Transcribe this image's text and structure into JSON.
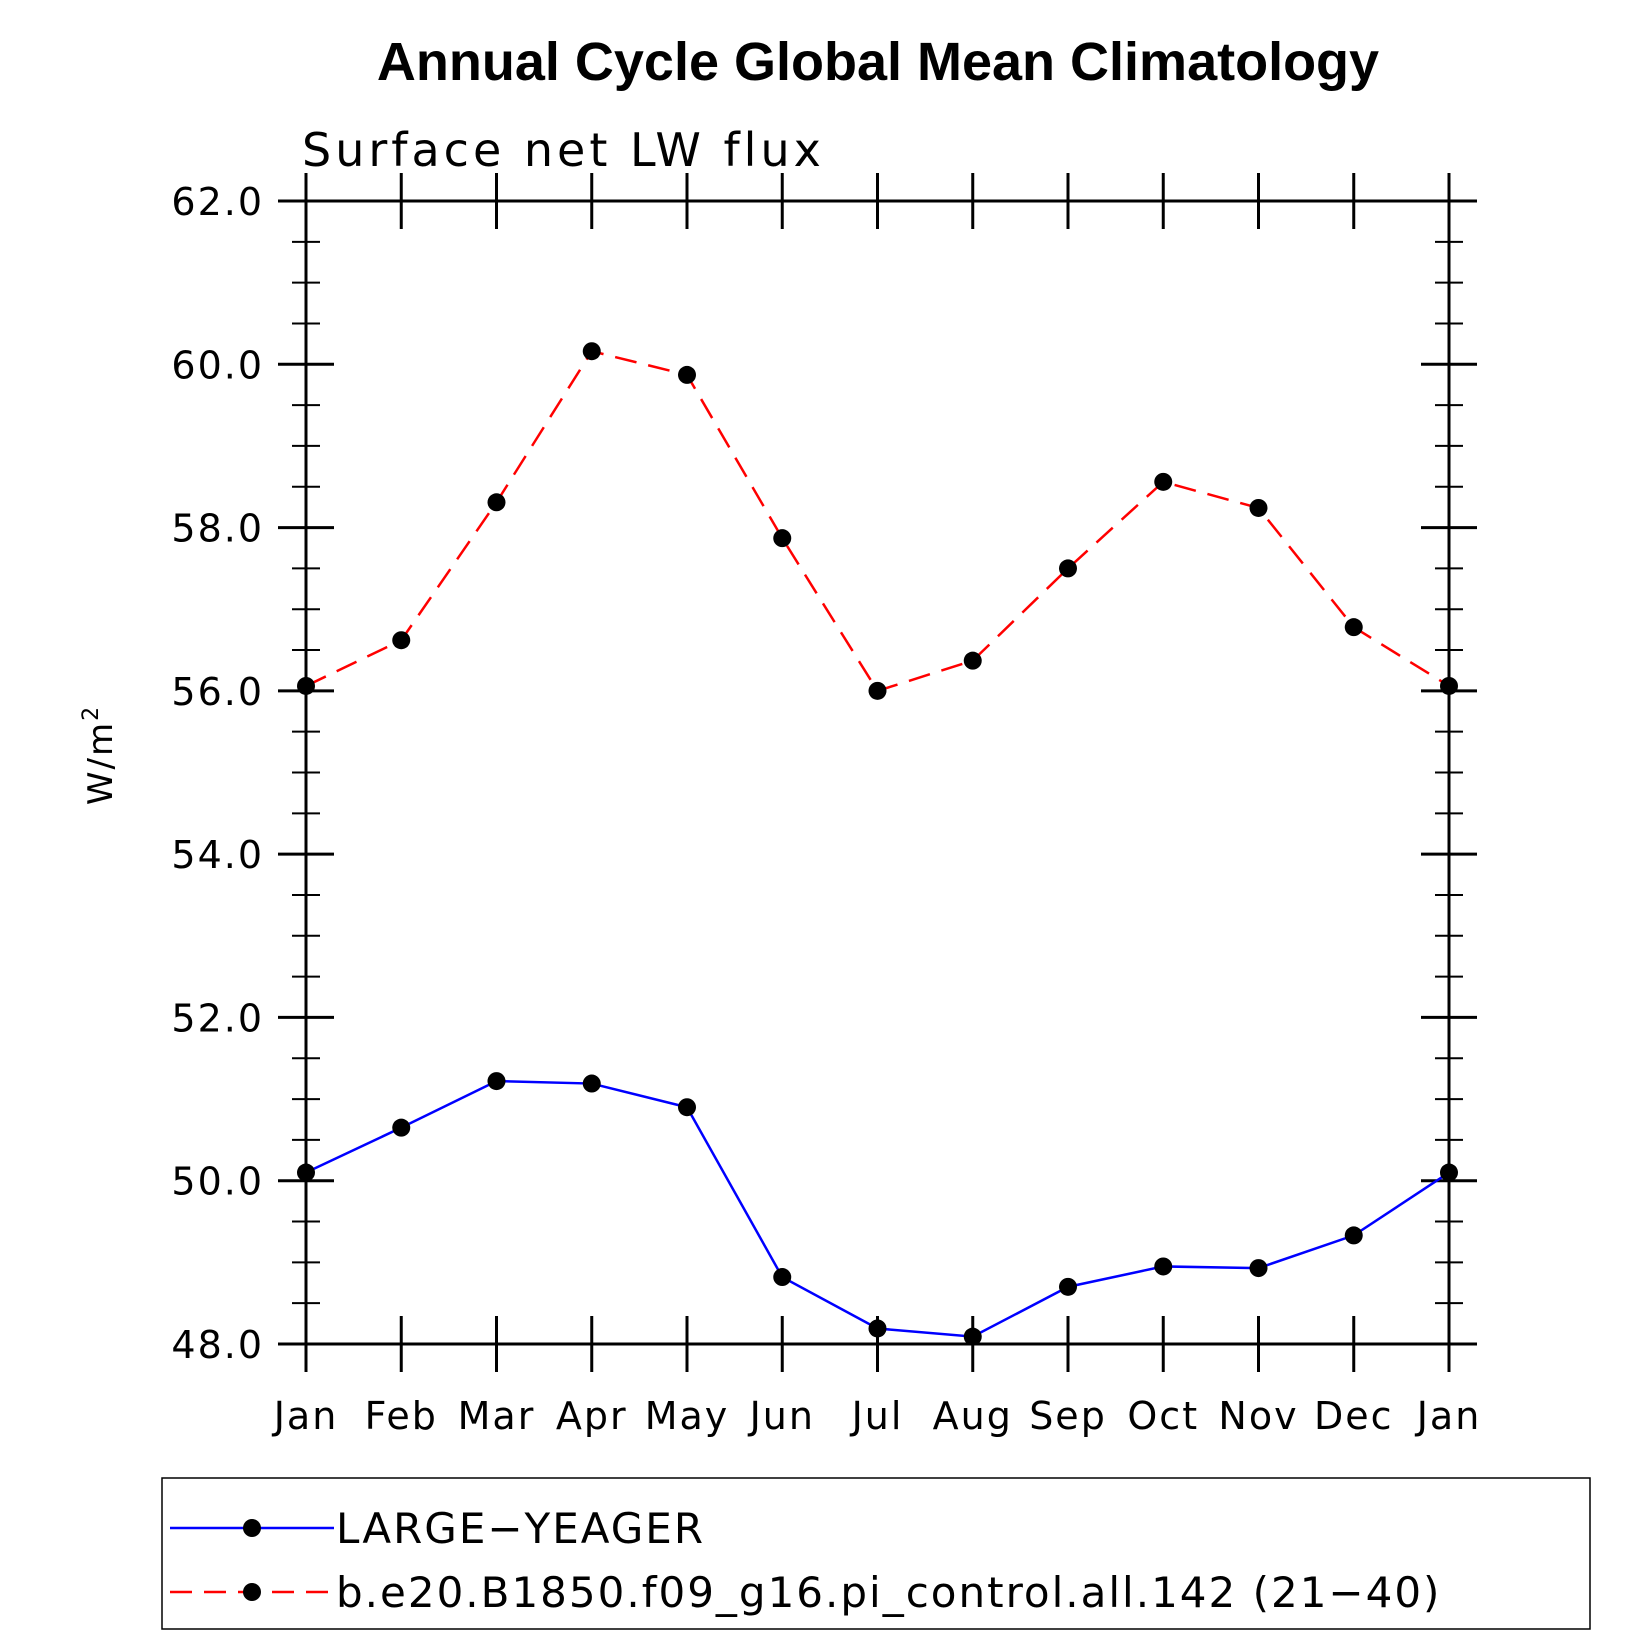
{
  "chart_data": {
    "type": "line",
    "title": "Annual Cycle Global Mean Climatology",
    "subtitle": "Surface net LW flux",
    "ylabel": "W/m",
    "ylabel_superscript": "2",
    "xlabel": "",
    "categories": [
      "Jan",
      "Feb",
      "Mar",
      "Apr",
      "May",
      "Jun",
      "Jul",
      "Aug",
      "Sep",
      "Oct",
      "Nov",
      "Dec",
      "Jan"
    ],
    "ylim": [
      48.0,
      62.0
    ],
    "yticks": [
      "48.0",
      "50.0",
      "52.0",
      "54.0",
      "56.0",
      "58.0",
      "60.0",
      "62.0"
    ],
    "grid": false,
    "legend_position": "bottom",
    "series": [
      {
        "name": "LARGE−YEAGER",
        "color": "#0000ff",
        "dash": "solid",
        "marker": "filled-circle",
        "values": [
          50.1,
          50.65,
          51.22,
          51.19,
          50.9,
          48.82,
          48.19,
          48.09,
          48.7,
          48.95,
          48.93,
          49.33,
          50.1
        ]
      },
      {
        "name": "b.e20.B1850.f09_g16.pi_control.all.142 (21−40)",
        "color": "#ff0000",
        "dash": "dashed",
        "marker": "filled-circle",
        "values": [
          56.06,
          56.62,
          58.31,
          60.16,
          59.87,
          57.87,
          56.0,
          56.37,
          57.5,
          58.56,
          58.24,
          56.78,
          56.06
        ]
      }
    ]
  }
}
